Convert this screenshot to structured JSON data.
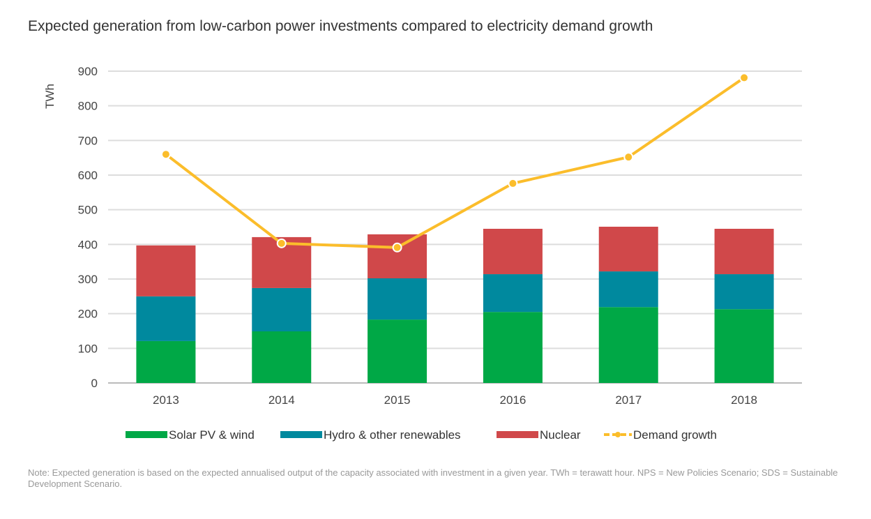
{
  "chart_data": {
    "type": "bar",
    "stacked": true,
    "title": "Expected generation from low-carbon power investments compared to electricity demand growth",
    "ylabel": "TWh",
    "xlabel": "",
    "ylim": [
      0,
      900
    ],
    "yticks": [
      0,
      100,
      200,
      300,
      400,
      500,
      600,
      700,
      800,
      900
    ],
    "grid": true,
    "legend_position": "bottom",
    "categories": [
      "2013",
      "2014",
      "2015",
      "2016",
      "2017",
      "2018"
    ],
    "series": [
      {
        "name": "Solar PV & wind",
        "kind": "bar",
        "color": "#00a846",
        "values": [
          121,
          149,
          183,
          205,
          219,
          213
        ]
      },
      {
        "name": "Hydro & other renewables",
        "kind": "bar",
        "color": "#00899e",
        "values": [
          129,
          125,
          119,
          109,
          103,
          101
        ]
      },
      {
        "name": "Nuclear",
        "kind": "bar",
        "color": "#d0484a",
        "values": [
          147,
          147,
          127,
          131,
          129,
          131
        ]
      },
      {
        "name": "Demand growth",
        "kind": "line",
        "color": "#fbbd2b",
        "values": [
          660,
          403,
          391,
          576,
          652,
          881
        ]
      }
    ],
    "note": "Note: Expected generation is based on the expected annualised output of the capacity associated with investment in a given year. TWh = terawatt hour. NPS = New Policies Scenario; SDS = Sustainable Development Scenario."
  }
}
